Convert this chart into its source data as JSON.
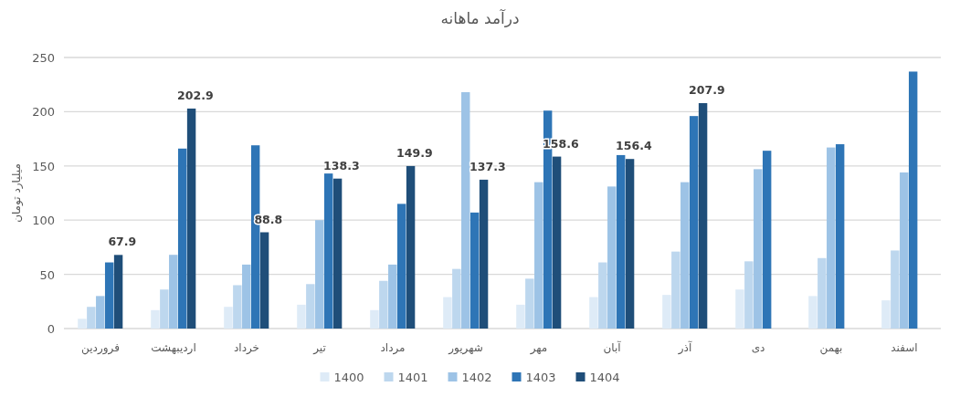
{
  "chart_data": {
    "type": "bar",
    "title": "درآمد ماهانه",
    "ylabel": "میلیارد تومان",
    "categories": [
      "فروردین",
      "اردیبهشت",
      "خرداد",
      "تیر",
      "مرداد",
      "شهریور",
      "مهر",
      "آبان",
      "آذر",
      "دی",
      "بهمن",
      "اسفند"
    ],
    "series": [
      {
        "name": "1400",
        "color": "#deebf7",
        "values": [
          9,
          17,
          20,
          22,
          17,
          29,
          22,
          29,
          31,
          36,
          30,
          26
        ]
      },
      {
        "name": "1401",
        "color": "#bdd7ee",
        "values": [
          20,
          36,
          40,
          41,
          44,
          55,
          46,
          61,
          71,
          62,
          65,
          72
        ]
      },
      {
        "name": "1402",
        "color": "#9dc3e6",
        "values": [
          30,
          68,
          59,
          100,
          59,
          218,
          135,
          131,
          135,
          147,
          167,
          144
        ]
      },
      {
        "name": "1403",
        "color": "#2e75b6",
        "values": [
          61,
          166,
          169,
          143,
          115,
          107,
          201,
          160,
          196,
          164,
          170,
          237
        ]
      },
      {
        "name": "1404",
        "color": "#1f4e79",
        "values": [
          67.9,
          202.9,
          88.8,
          138.3,
          149.9,
          137.3,
          158.6,
          156.4,
          207.9,
          null,
          null,
          null
        ],
        "value_labels": [
          "67.9",
          "202.9",
          "88.8",
          "138.3",
          "149.9",
          "137.3",
          "158.6",
          "156.4",
          "207.9",
          null,
          null,
          null
        ]
      }
    ],
    "ylim": [
      0,
      250
    ],
    "yticks": [
      0,
      50,
      100,
      150,
      200,
      250
    ],
    "grid": "y",
    "legend": "bottom"
  }
}
